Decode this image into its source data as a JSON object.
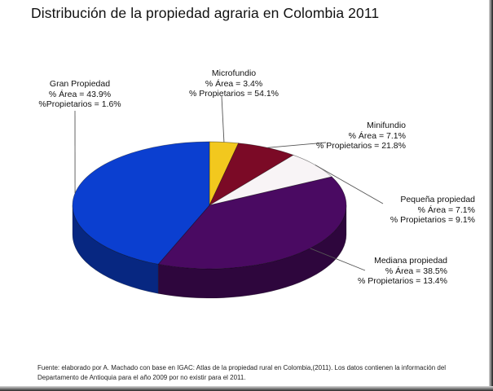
{
  "chart_data": {
    "type": "pie",
    "title": "Distribución de la propiedad agraria en Colombia 2011",
    "slices": [
      {
        "name": "Microfundio",
        "area_pct": 3.4,
        "propietarios_pct": 54.1,
        "area_text": "% Área = 3.4%",
        "prop_text": "% Propietarios = 54.1%",
        "color": "#f2c81e"
      },
      {
        "name": "Minifundio",
        "area_pct": 7.1,
        "propietarios_pct": 21.8,
        "area_text": "% Área = 7.1%",
        "prop_text": "% Propietarios = 21.8%",
        "color": "#7b0a26"
      },
      {
        "name": "Pequeña propiedad",
        "area_pct": 7.1,
        "propietarios_pct": 9.1,
        "area_text": "% Área = 7.1%",
        "prop_text": "% Propietarios = 9.1%",
        "color": "#f8f4f6"
      },
      {
        "name": "Mediana propiedad",
        "area_pct": 38.5,
        "propietarios_pct": 13.4,
        "area_text": "% Área = 38.5%",
        "prop_text": "% Propietarios = 13.4%",
        "color": "#4a0a62"
      },
      {
        "name": "Gran Propiedad",
        "area_pct": 43.9,
        "propietarios_pct": 1.6,
        "area_text": "% Área = 43.9%",
        "prop_text": "%Propietarios = 1.6%",
        "color": "#0b3fd0"
      }
    ]
  },
  "source_note": "Fuente: elaborado por A. Machado con base en IGAC: Atlas de la propiedad rural en Colombia,(2011). Los datos contienen la información del Departamento de Antioquia para el año 2009 por no existir para el 2011."
}
